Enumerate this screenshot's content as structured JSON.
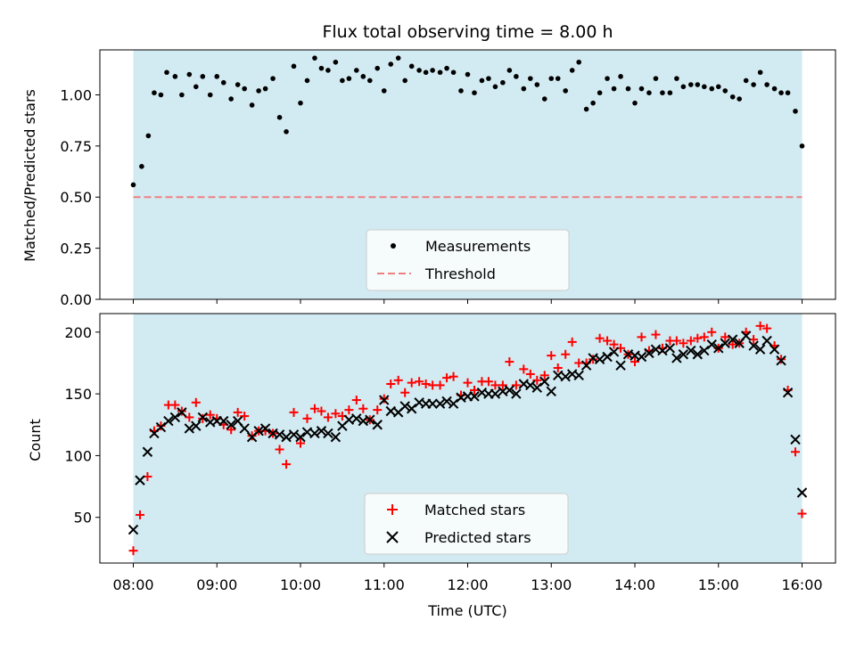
{
  "chart_data": [
    {
      "type": "scatter",
      "title": "Flux total observing time = 8.00 h",
      "xlabel": "",
      "ylabel": "Matched/Predicted stars",
      "xlim": [
        7.6,
        16.4
      ],
      "ylim": [
        0.0,
        1.22
      ],
      "yticks": [
        0.0,
        0.25,
        0.5,
        0.75,
        1.0
      ],
      "ytick_labels": [
        "0.00",
        "0.25",
        "0.50",
        "0.75",
        "1.00"
      ],
      "shaded_span": [
        8.0,
        16.0
      ],
      "shade_color": "#add8e6",
      "legend": {
        "placement": "bottom-center",
        "entries": [
          "Measurements",
          "Threshold"
        ]
      },
      "threshold": {
        "name": "Threshold",
        "value": 0.5,
        "color": "#f08080"
      },
      "series": [
        {
          "name": "Measurements",
          "marker": "dot",
          "color": "#000000",
          "x": [
            8.0,
            8.1,
            8.18,
            8.25,
            8.33,
            8.4,
            8.5,
            8.58,
            8.67,
            8.75,
            8.83,
            8.92,
            9.0,
            9.08,
            9.17,
            9.25,
            9.33,
            9.42,
            9.5,
            9.58,
            9.67,
            9.75,
            9.83,
            9.92,
            10.0,
            10.08,
            10.17,
            10.25,
            10.33,
            10.42,
            10.5,
            10.58,
            10.67,
            10.75,
            10.83,
            10.92,
            11.0,
            11.08,
            11.17,
            11.25,
            11.33,
            11.42,
            11.5,
            11.58,
            11.67,
            11.75,
            11.83,
            11.92,
            12.0,
            12.08,
            12.17,
            12.25,
            12.33,
            12.42,
            12.5,
            12.58,
            12.67,
            12.75,
            12.83,
            12.92,
            13.0,
            13.08,
            13.17,
            13.25,
            13.33,
            13.42,
            13.5,
            13.58,
            13.67,
            13.75,
            13.83,
            13.92,
            14.0,
            14.08,
            14.17,
            14.25,
            14.33,
            14.42,
            14.5,
            14.58,
            14.67,
            14.75,
            14.83,
            14.92,
            15.0,
            15.08,
            15.17,
            15.25,
            15.33,
            15.42,
            15.5,
            15.58,
            15.67,
            15.75,
            15.83,
            15.92,
            16.0
          ],
          "y": [
            0.56,
            0.65,
            0.8,
            1.01,
            1.0,
            1.11,
            1.09,
            1.0,
            1.1,
            1.04,
            1.09,
            1.0,
            1.09,
            1.06,
            0.98,
            1.05,
            1.03,
            0.95,
            1.02,
            1.03,
            1.08,
            0.89,
            0.82,
            1.14,
            0.96,
            1.07,
            1.18,
            1.13,
            1.12,
            1.16,
            1.07,
            1.08,
            1.12,
            1.09,
            1.07,
            1.13,
            1.02,
            1.15,
            1.18,
            1.07,
            1.14,
            1.12,
            1.11,
            1.12,
            1.11,
            1.13,
            1.11,
            1.02,
            1.1,
            1.01,
            1.07,
            1.08,
            1.04,
            1.06,
            1.12,
            1.09,
            1.03,
            1.08,
            1.05,
            0.98,
            1.08,
            1.08,
            1.02,
            1.12,
            1.16,
            0.93,
            0.96,
            1.01,
            1.08,
            1.03,
            1.09,
            1.03,
            0.96,
            1.03,
            1.01,
            1.08,
            1.01,
            1.01,
            1.08,
            1.04,
            1.05,
            1.05,
            1.04,
            1.03,
            1.04,
            1.02,
            0.99,
            0.98,
            1.07,
            1.05,
            1.11,
            1.05,
            1.03,
            1.01,
            1.01,
            0.92,
            0.75
          ]
        }
      ]
    },
    {
      "type": "scatter",
      "title": "",
      "xlabel": "Time (UTC)",
      "ylabel": "Count",
      "xlim": [
        7.6,
        16.4
      ],
      "ylim": [
        13,
        215
      ],
      "xticks": [
        8,
        9,
        10,
        11,
        12,
        13,
        14,
        15,
        16
      ],
      "xtick_labels": [
        "08:00",
        "09:00",
        "10:00",
        "11:00",
        "12:00",
        "13:00",
        "14:00",
        "15:00",
        "16:00"
      ],
      "yticks": [
        50,
        100,
        150,
        200
      ],
      "ytick_labels": [
        "50",
        "100",
        "150",
        "200"
      ],
      "shaded_span": [
        8.0,
        16.0
      ],
      "shade_color": "#add8e6",
      "legend": {
        "placement": "bottom-center",
        "entries": [
          "Matched stars",
          "Predicted stars"
        ]
      },
      "series": [
        {
          "name": "Matched stars",
          "marker": "plus",
          "color": "#ff0000",
          "x": [
            8.0,
            8.08,
            8.17,
            8.25,
            8.33,
            8.42,
            8.5,
            8.58,
            8.67,
            8.75,
            8.83,
            8.92,
            9.0,
            9.08,
            9.17,
            9.25,
            9.33,
            9.42,
            9.5,
            9.58,
            9.67,
            9.75,
            9.83,
            9.92,
            10.0,
            10.08,
            10.17,
            10.25,
            10.33,
            10.42,
            10.5,
            10.58,
            10.67,
            10.75,
            10.83,
            10.92,
            11.0,
            11.08,
            11.17,
            11.25,
            11.33,
            11.42,
            11.5,
            11.58,
            11.67,
            11.75,
            11.83,
            11.92,
            12.0,
            12.08,
            12.17,
            12.25,
            12.33,
            12.42,
            12.5,
            12.58,
            12.67,
            12.75,
            12.83,
            12.92,
            13.0,
            13.08,
            13.17,
            13.25,
            13.33,
            13.42,
            13.5,
            13.58,
            13.67,
            13.75,
            13.83,
            13.92,
            14.0,
            14.08,
            14.17,
            14.25,
            14.33,
            14.42,
            14.5,
            14.58,
            14.67,
            14.75,
            14.83,
            14.92,
            15.0,
            15.08,
            15.17,
            15.25,
            15.33,
            15.42,
            15.5,
            15.58,
            15.67,
            15.75,
            15.83,
            15.92,
            16.0
          ],
          "y": [
            23,
            52,
            83,
            120,
            124,
            141,
            141,
            136,
            131,
            143,
            130,
            133,
            130,
            125,
            121,
            135,
            132,
            116,
            120,
            120,
            118,
            105,
            93,
            135,
            110,
            130,
            138,
            136,
            131,
            134,
            132,
            137,
            145,
            138,
            129,
            137,
            146,
            158,
            161,
            151,
            159,
            160,
            158,
            157,
            157,
            163,
            164,
            149,
            159,
            153,
            160,
            160,
            157,
            157,
            176,
            157,
            170,
            166,
            161,
            165,
            181,
            171,
            182,
            192,
            175,
            175,
            178,
            195,
            193,
            190,
            187,
            182,
            176,
            196,
            185,
            198,
            187,
            193,
            193,
            191,
            193,
            195,
            196,
            200,
            187,
            196,
            190,
            191,
            200,
            194,
            205,
            203,
            189,
            178,
            153,
            103,
            53
          ]
        },
        {
          "name": "Predicted stars",
          "marker": "x",
          "color": "#000000",
          "x": [
            8.0,
            8.08,
            8.17,
            8.25,
            8.33,
            8.42,
            8.5,
            8.58,
            8.67,
            8.75,
            8.83,
            8.92,
            9.0,
            9.08,
            9.17,
            9.25,
            9.33,
            9.42,
            9.5,
            9.58,
            9.67,
            9.75,
            9.83,
            9.92,
            10.0,
            10.08,
            10.17,
            10.25,
            10.33,
            10.42,
            10.5,
            10.58,
            10.67,
            10.75,
            10.83,
            10.92,
            11.0,
            11.08,
            11.17,
            11.25,
            11.33,
            11.42,
            11.5,
            11.58,
            11.67,
            11.75,
            11.83,
            11.92,
            12.0,
            12.08,
            12.17,
            12.25,
            12.33,
            12.42,
            12.5,
            12.58,
            12.67,
            12.75,
            12.83,
            12.92,
            13.0,
            13.08,
            13.17,
            13.25,
            13.33,
            13.42,
            13.5,
            13.58,
            13.67,
            13.75,
            13.83,
            13.92,
            14.0,
            14.08,
            14.17,
            14.25,
            14.33,
            14.42,
            14.5,
            14.58,
            14.67,
            14.75,
            14.83,
            14.92,
            15.0,
            15.08,
            15.17,
            15.25,
            15.33,
            15.42,
            15.5,
            15.58,
            15.67,
            15.75,
            15.83,
            15.92,
            16.0
          ],
          "y": [
            40,
            80,
            103,
            118,
            123,
            128,
            131,
            135,
            122,
            124,
            131,
            127,
            128,
            128,
            125,
            128,
            122,
            115,
            120,
            122,
            118,
            117,
            115,
            117,
            115,
            119,
            118,
            120,
            118,
            115,
            124,
            129,
            130,
            128,
            129,
            125,
            145,
            136,
            135,
            140,
            138,
            143,
            142,
            142,
            142,
            144,
            142,
            147,
            148,
            148,
            151,
            150,
            150,
            152,
            153,
            150,
            158,
            157,
            155,
            160,
            152,
            165,
            164,
            166,
            165,
            173,
            179,
            178,
            180,
            184,
            173,
            182,
            181,
            180,
            183,
            186,
            185,
            187,
            179,
            182,
            185,
            182,
            185,
            190,
            187,
            191,
            194,
            191,
            197,
            189,
            186,
            193,
            186,
            177,
            151,
            113,
            70
          ]
        }
      ]
    }
  ]
}
